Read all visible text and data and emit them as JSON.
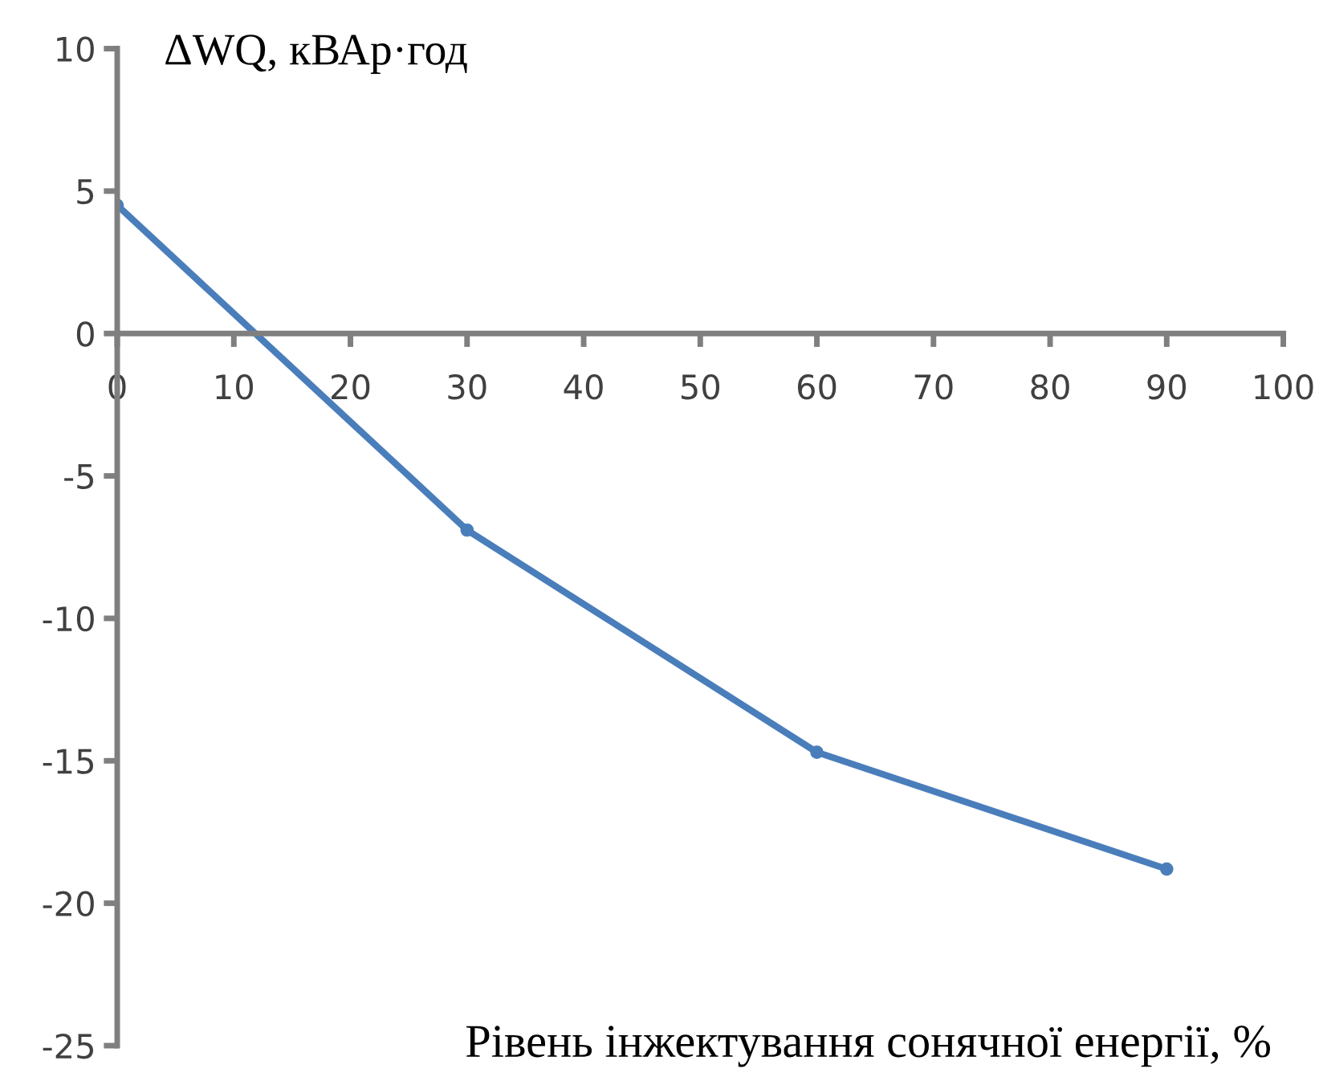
{
  "chart_data": {
    "type": "line",
    "xlabel": "Рівень інжектування сонячної енергії, %",
    "ylabel": "ΔWQ, кВАр·год",
    "x": [
      0,
      30,
      60,
      90
    ],
    "series": [
      {
        "color": "#4a7ebb",
        "values": [
          4.5,
          -6.9,
          -14.7,
          -18.8
        ]
      }
    ],
    "xlim": [
      0,
      100
    ],
    "xticks": [
      0,
      10,
      20,
      30,
      40,
      50,
      60,
      70,
      80,
      90,
      100
    ],
    "ylim": [
      -25,
      10
    ],
    "yticks": [
      -25,
      -20,
      -15,
      -10,
      -5,
      0,
      5,
      10
    ],
    "grid": false,
    "legend": false,
    "marker": "circle",
    "line_style": "solid"
  }
}
